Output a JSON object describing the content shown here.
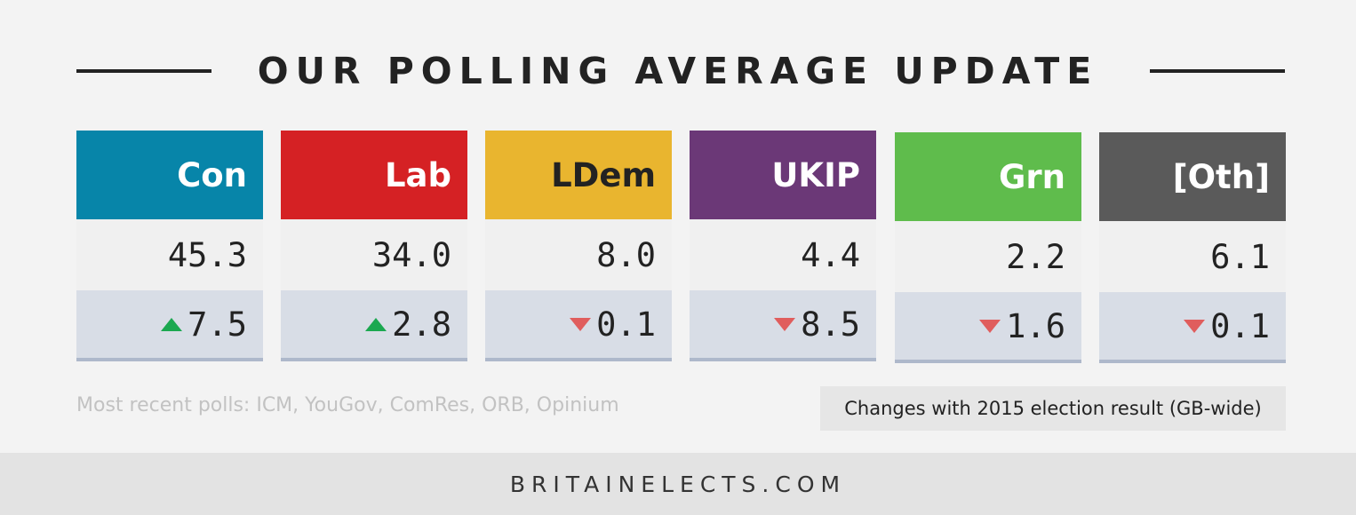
{
  "title": "OUR POLLING AVERAGE UPDATE",
  "chart_data": {
    "type": "table",
    "title": "OUR POLLING AVERAGE UPDATE",
    "categories": [
      "Con",
      "Lab",
      "LDem",
      "UKIP",
      "Grn",
      "[Oth]"
    ],
    "series": [
      {
        "name": "polling average",
        "values": [
          "45.3",
          "34.0",
          "8.0",
          "4.4",
          "2.2",
          "6.1"
        ]
      },
      {
        "name": "Changes with 2015 election result (GB-wide)",
        "values": [
          "7.5",
          "2.8",
          "0.1",
          "8.5",
          "1.6",
          "0.1"
        ],
        "directions": [
          "up",
          "up",
          "down",
          "down",
          "down",
          "down"
        ]
      }
    ],
    "colors": [
      "#0785a9",
      "#d52124",
      "#e9b52f",
      "#6b3877",
      "#5fbc4c",
      "#5a5a5a"
    ],
    "header_text_colors": [
      "#ffffff",
      "#ffffff",
      "#222222",
      "#ffffff",
      "#ffffff",
      "#ffffff"
    ]
  },
  "sources": "Most recent polls: ICM, YouGov, ComRes, ORB, Opinium",
  "changes_note": "Changes with 2015 election result (GB-wide)",
  "footer": "BRITAINELECTS.COM",
  "arrow_colors": {
    "up": "#1ba850",
    "down": "#e05d5d"
  }
}
